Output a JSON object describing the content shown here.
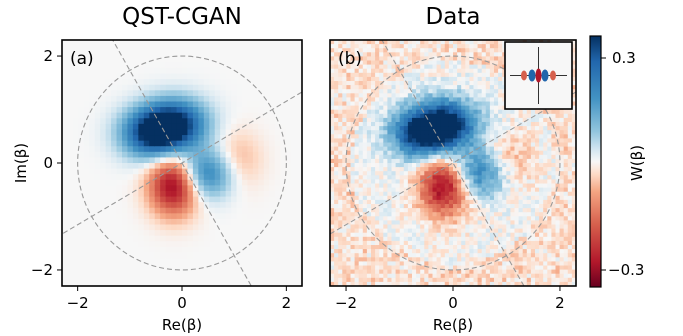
{
  "chart_data": [
    {
      "type": "heatmap",
      "panel_label": "(a)",
      "title": "QST-CGAN",
      "xlabel": "Re(β)",
      "ylabel": "Im(β)",
      "xlim": [
        -2.3,
        2.3
      ],
      "ylim": [
        -2.3,
        2.3
      ],
      "xticks": [
        -2,
        0,
        2
      ],
      "yticks": [
        -2,
        0,
        2
      ],
      "xtick_labels": [
        "−2",
        "0",
        "2"
      ],
      "ytick_labels": [
        "−2",
        "0",
        "2"
      ],
      "guide_circle_radius": 2.0,
      "guide_line_angles_deg": [
        30,
        120
      ],
      "features": [
        {
          "kind": "positive_lobe",
          "x": -0.55,
          "y": 0.55,
          "amplitude": 0.3
        },
        {
          "kind": "positive_lobe",
          "x": -0.1,
          "y": 0.75,
          "amplitude": 0.25
        },
        {
          "kind": "negative_lobe",
          "x": -0.15,
          "y": -0.4,
          "amplitude": -0.3
        },
        {
          "kind": "positive_lobe",
          "x": 0.45,
          "y": -0.2,
          "amplitude": 0.2
        },
        {
          "kind": "negative_lobe",
          "x": 1.05,
          "y": 0.0,
          "amplitude": -0.08
        }
      ]
    },
    {
      "type": "heatmap",
      "panel_label": "(b)",
      "title": "Data",
      "xlabel": "Re(β)",
      "ylabel": "",
      "xlim": [
        -2.3,
        2.3
      ],
      "ylim": [
        -2.3,
        2.3
      ],
      "xticks": [
        -2,
        0,
        2
      ],
      "xtick_labels": [
        "−2",
        "0",
        "2"
      ],
      "guide_circle_radius": 2.0,
      "guide_line_angles_deg": [
        30,
        120
      ],
      "noisy": true,
      "has_inset": true,
      "features": [
        {
          "kind": "positive_lobe",
          "x": -0.55,
          "y": 0.55,
          "amplitude": 0.3
        },
        {
          "kind": "positive_lobe",
          "x": -0.1,
          "y": 0.75,
          "amplitude": 0.25
        },
        {
          "kind": "negative_lobe",
          "x": -0.15,
          "y": -0.4,
          "amplitude": -0.3
        },
        {
          "kind": "positive_lobe",
          "x": 0.45,
          "y": -0.2,
          "amplitude": 0.2
        },
        {
          "kind": "negative_lobe",
          "x": 1.05,
          "y": 0.0,
          "amplitude": -0.08
        }
      ]
    }
  ],
  "colorbar": {
    "label": "W(β)",
    "min": -0.3,
    "max": 0.3,
    "tick_labels": [
      "0.3",
      "−0.3"
    ],
    "colormap": "RdBu",
    "colors": {
      "neg": "#67001f",
      "mid": "#f7f7f7",
      "pos": "#053061"
    }
  }
}
